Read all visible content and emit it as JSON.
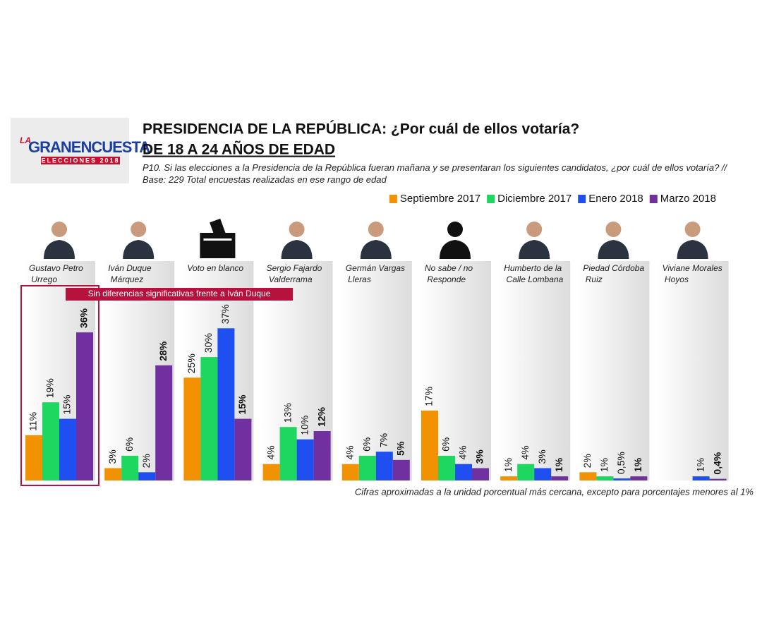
{
  "chart_data": {
    "type": "bar",
    "title": "PRESIDENCIA DE LA REPÚBLICA: ¿Por cuál de ellos votaría?",
    "subtitle": "DE 18 A 24 AÑOS DE EDAD",
    "question": "P10. Si las elecciones a la Presidencia de la República fueran mañana y se presentaran los siguientes candidatos, ¿por cuál de ellos votaría?  // Base: 229 Total encuestas realizadas en ese rango de edad",
    "logo": {
      "line1": "LA",
      "line2": "GRANENCUESTA",
      "line3": "ELECCIONES 2018"
    },
    "annotation": "Sin diferencias significativas frente a Iván Duque",
    "footnote": "Cifras aproximadas a la unidad porcentual más cercana, excepto para porcentajes menores al 1%",
    "categories": [
      "Gustavo Petro Urrego",
      "Iván Duque Márquez",
      "Voto en blanco",
      "Sergio Fajardo Valderrama",
      "Germán Vargas Lleras",
      "No sabe / no Responde",
      "Humberto de la Calle Lombana",
      "Piedad Córdoba Ruiz",
      "Viviane Morales Hoyos"
    ],
    "ylim": [
      0,
      40
    ],
    "legend": "top-right",
    "series": [
      {
        "name": "Septiembre 2017",
        "color": "#f39200",
        "values": [
          11,
          3,
          25,
          4,
          4,
          17,
          1,
          2,
          null
        ],
        "value_labels": [
          "11%",
          "3%",
          "25%",
          "4%",
          "4%",
          "17%",
          "1%",
          "2%",
          null
        ]
      },
      {
        "name": "Diciembre 2017",
        "color": "#1ed760",
        "values": [
          19,
          6,
          30,
          13,
          6,
          6,
          4,
          1,
          null
        ],
        "value_labels": [
          "19%",
          "6%",
          "30%",
          "13%",
          "6%",
          "6%",
          "4%",
          "1%",
          null
        ]
      },
      {
        "name": "Enero 2018",
        "color": "#1f4ff0",
        "values": [
          15,
          2,
          37,
          10,
          7,
          4,
          3,
          0.5,
          1
        ],
        "value_labels": [
          "15%",
          "2%",
          "37%",
          "10%",
          "7%",
          "4%",
          "3%",
          "0,5%",
          "1%"
        ]
      },
      {
        "name": "Marzo 2018",
        "color": "#7030a0",
        "values": [
          36,
          28,
          15,
          12,
          5,
          3,
          1,
          1,
          0.4
        ],
        "value_labels": [
          "36%",
          "28%",
          "15%",
          "12%",
          "5%",
          "3%",
          "1%",
          "1%",
          "0,4%"
        ],
        "bold": true
      }
    ]
  }
}
